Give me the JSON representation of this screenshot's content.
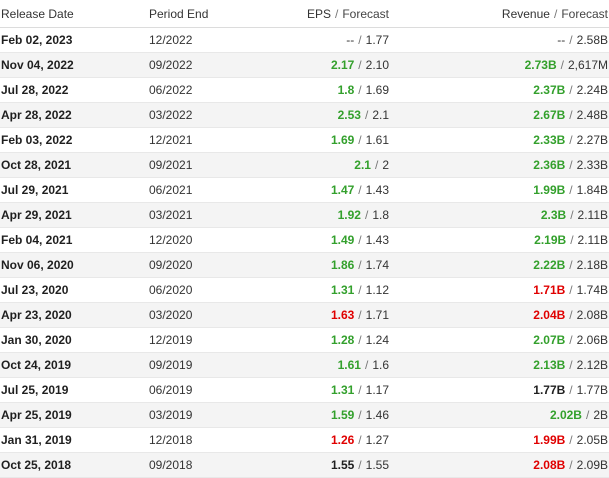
{
  "header": {
    "release_date": "Release Date",
    "period_end": "Period End",
    "eps": "EPS",
    "eps_forecast": "Forecast",
    "revenue": "Revenue",
    "revenue_forecast": "Forecast",
    "separator": "/"
  },
  "status_colors": {
    "beat": "#33a02c",
    "miss": "#e00000",
    "inline": "#1f1f1f"
  },
  "rows": [
    {
      "release_date": "Feb 02, 2023",
      "period_end": "12/2022",
      "eps": "--",
      "eps_status": "none",
      "eps_forecast": "1.77",
      "revenue": "--",
      "revenue_status": "none",
      "revenue_forecast": "2.58B"
    },
    {
      "release_date": "Nov 04, 2022",
      "period_end": "09/2022",
      "eps": "2.17",
      "eps_status": "beat",
      "eps_forecast": "2.10",
      "revenue": "2.73B",
      "revenue_status": "beat",
      "revenue_forecast": "2,617M"
    },
    {
      "release_date": "Jul 28, 2022",
      "period_end": "06/2022",
      "eps": "1.8",
      "eps_status": "beat",
      "eps_forecast": "1.69",
      "revenue": "2.37B",
      "revenue_status": "beat",
      "revenue_forecast": "2.24B"
    },
    {
      "release_date": "Apr 28, 2022",
      "period_end": "03/2022",
      "eps": "2.53",
      "eps_status": "beat",
      "eps_forecast": "2.1",
      "revenue": "2.67B",
      "revenue_status": "beat",
      "revenue_forecast": "2.48B"
    },
    {
      "release_date": "Feb 03, 2022",
      "period_end": "12/2021",
      "eps": "1.69",
      "eps_status": "beat",
      "eps_forecast": "1.61",
      "revenue": "2.33B",
      "revenue_status": "beat",
      "revenue_forecast": "2.27B"
    },
    {
      "release_date": "Oct 28, 2021",
      "period_end": "09/2021",
      "eps": "2.1",
      "eps_status": "beat",
      "eps_forecast": "2",
      "revenue": "2.36B",
      "revenue_status": "beat",
      "revenue_forecast": "2.33B"
    },
    {
      "release_date": "Jul 29, 2021",
      "period_end": "06/2021",
      "eps": "1.47",
      "eps_status": "beat",
      "eps_forecast": "1.43",
      "revenue": "1.99B",
      "revenue_status": "beat",
      "revenue_forecast": "1.84B"
    },
    {
      "release_date": "Apr 29, 2021",
      "period_end": "03/2021",
      "eps": "1.92",
      "eps_status": "beat",
      "eps_forecast": "1.8",
      "revenue": "2.3B",
      "revenue_status": "beat",
      "revenue_forecast": "2.11B"
    },
    {
      "release_date": "Feb 04, 2021",
      "period_end": "12/2020",
      "eps": "1.49",
      "eps_status": "beat",
      "eps_forecast": "1.43",
      "revenue": "2.19B",
      "revenue_status": "beat",
      "revenue_forecast": "2.11B"
    },
    {
      "release_date": "Nov 06, 2020",
      "period_end": "09/2020",
      "eps": "1.86",
      "eps_status": "beat",
      "eps_forecast": "1.74",
      "revenue": "2.22B",
      "revenue_status": "beat",
      "revenue_forecast": "2.18B"
    },
    {
      "release_date": "Jul 23, 2020",
      "period_end": "06/2020",
      "eps": "1.31",
      "eps_status": "beat",
      "eps_forecast": "1.12",
      "revenue": "1.71B",
      "revenue_status": "miss",
      "revenue_forecast": "1.74B"
    },
    {
      "release_date": "Apr 23, 2020",
      "period_end": "03/2020",
      "eps": "1.63",
      "eps_status": "miss",
      "eps_forecast": "1.71",
      "revenue": "2.04B",
      "revenue_status": "miss",
      "revenue_forecast": "2.08B"
    },
    {
      "release_date": "Jan 30, 2020",
      "period_end": "12/2019",
      "eps": "1.28",
      "eps_status": "beat",
      "eps_forecast": "1.24",
      "revenue": "2.07B",
      "revenue_status": "beat",
      "revenue_forecast": "2.06B"
    },
    {
      "release_date": "Oct 24, 2019",
      "period_end": "09/2019",
      "eps": "1.61",
      "eps_status": "beat",
      "eps_forecast": "1.6",
      "revenue": "2.13B",
      "revenue_status": "beat",
      "revenue_forecast": "2.12B"
    },
    {
      "release_date": "Jul 25, 2019",
      "period_end": "06/2019",
      "eps": "1.31",
      "eps_status": "beat",
      "eps_forecast": "1.17",
      "revenue": "1.77B",
      "revenue_status": "inline",
      "revenue_forecast": "1.77B"
    },
    {
      "release_date": "Apr 25, 2019",
      "period_end": "03/2019",
      "eps": "1.59",
      "eps_status": "beat",
      "eps_forecast": "1.46",
      "revenue": "2.02B",
      "revenue_status": "beat",
      "revenue_forecast": "2B"
    },
    {
      "release_date": "Jan 31, 2019",
      "period_end": "12/2018",
      "eps": "1.26",
      "eps_status": "miss",
      "eps_forecast": "1.27",
      "revenue": "1.99B",
      "revenue_status": "miss",
      "revenue_forecast": "2.05B"
    },
    {
      "release_date": "Oct 25, 2018",
      "period_end": "09/2018",
      "eps": "1.55",
      "eps_status": "inline",
      "eps_forecast": "1.55",
      "revenue": "2.08B",
      "revenue_status": "miss",
      "revenue_forecast": "2.09B"
    }
  ]
}
